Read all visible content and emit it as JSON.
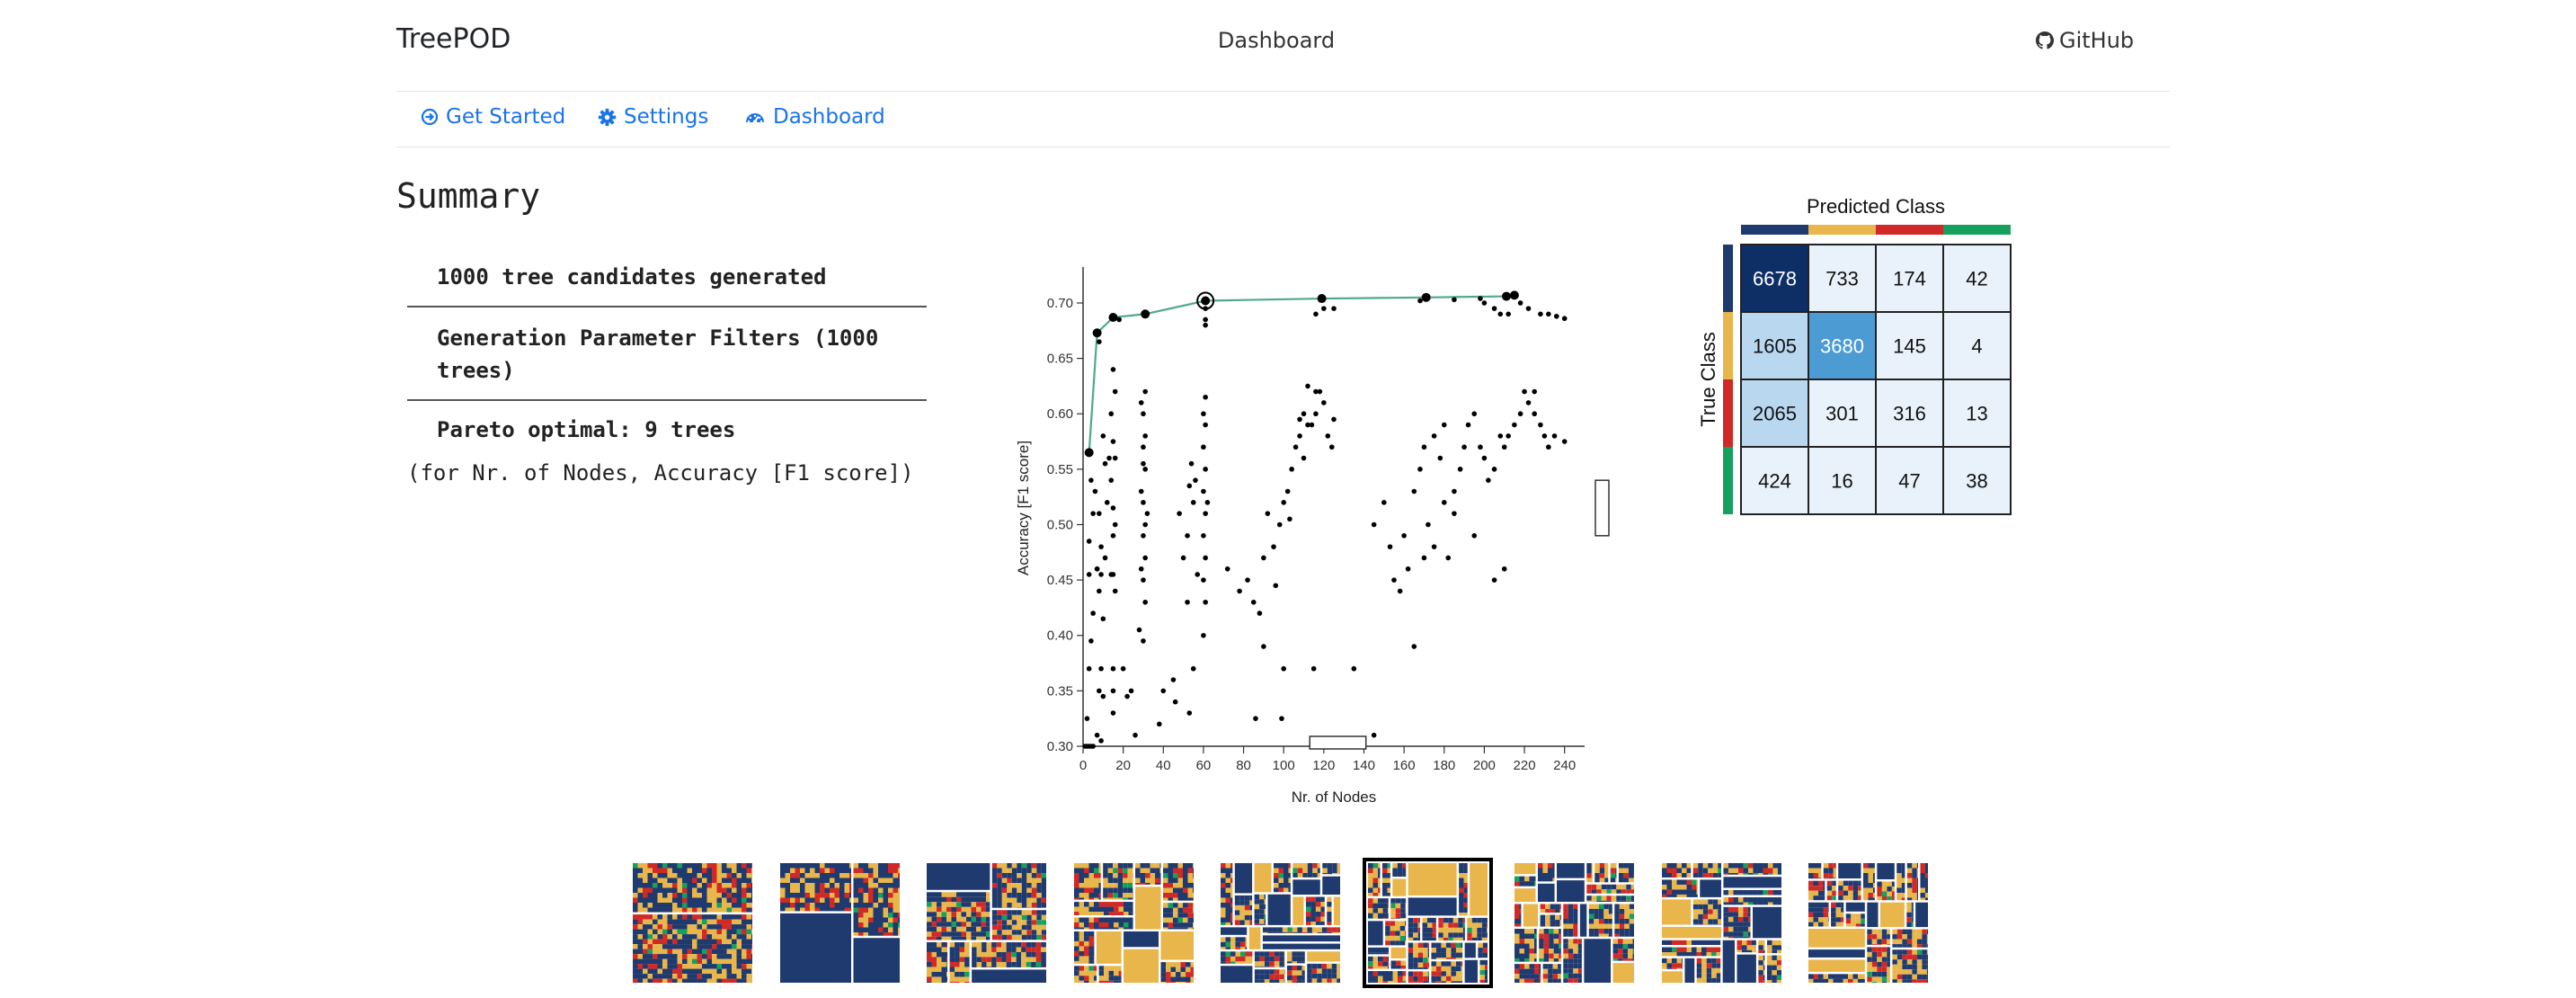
{
  "navbar": {
    "brand": "TreePOD",
    "center_title": "Dashboard",
    "github_label": "GitHub",
    "github_icon": "github-icon"
  },
  "nav": {
    "items": [
      {
        "label": "Get Started",
        "icon": "arrow-circle-icon"
      },
      {
        "label": "Settings",
        "icon": "gear-icon"
      },
      {
        "label": "Dashboard",
        "icon": "tachometer-icon"
      }
    ],
    "link_color": "#1a73e8"
  },
  "summary": {
    "heading": "Summary",
    "items": [
      "1000 tree candidates generated",
      "Generation Parameter Filters (1000 trees)",
      "Pareto optimal: 9 trees"
    ],
    "note": "(for Nr. of Nodes, Accuracy [F1 score])"
  },
  "colors": {
    "class1": "#1f3a6e",
    "class2": "#e8b64b",
    "class3": "#cf2a27",
    "class4": "#16a05d",
    "pareto_line": "#4fa98a"
  },
  "chart_data": [
    {
      "type": "scatter",
      "xlabel": "Nr. of Nodes",
      "ylabel": "Accuracy [F1 score]",
      "xlim": [
        0,
        250
      ],
      "ylim": [
        0.3,
        0.73
      ],
      "x_ticks": [
        "0",
        "20",
        "40",
        "60",
        "80",
        "100",
        "120",
        "140",
        "160",
        "180",
        "200",
        "220",
        "240"
      ],
      "y_ticks": [
        "0.30",
        "0.35",
        "0.40",
        "0.45",
        "0.50",
        "0.55",
        "0.60",
        "0.65",
        "0.70"
      ],
      "pareto_front": [
        {
          "x": 3,
          "y": 0.565
        },
        {
          "x": 7,
          "y": 0.673
        },
        {
          "x": 15,
          "y": 0.687
        },
        {
          "x": 31,
          "y": 0.69
        },
        {
          "x": 61,
          "y": 0.702
        },
        {
          "x": 119,
          "y": 0.704
        },
        {
          "x": 171,
          "y": 0.705
        },
        {
          "x": 211,
          "y": 0.706
        },
        {
          "x": 215,
          "y": 0.707
        }
      ],
      "selected_point": {
        "x": 61,
        "y": 0.702
      },
      "points": [
        [
          1,
          0.3
        ],
        [
          2,
          0.3
        ],
        [
          3,
          0.3
        ],
        [
          4,
          0.3
        ],
        [
          5,
          0.3
        ],
        [
          2,
          0.325
        ],
        [
          3,
          0.37
        ],
        [
          4,
          0.395
        ],
        [
          3,
          0.455
        ],
        [
          5,
          0.42
        ],
        [
          3,
          0.485
        ],
        [
          5,
          0.51
        ],
        [
          7,
          0.46
        ],
        [
          6,
          0.53
        ],
        [
          4,
          0.54
        ],
        [
          3,
          0.565
        ],
        [
          7,
          0.31
        ],
        [
          9,
          0.305
        ],
        [
          8,
          0.35
        ],
        [
          9,
          0.37
        ],
        [
          10,
          0.345
        ],
        [
          7,
          0.46
        ],
        [
          8,
          0.44
        ],
        [
          10,
          0.415
        ],
        [
          9,
          0.48
        ],
        [
          11,
          0.47
        ],
        [
          8,
          0.51
        ],
        [
          12,
          0.52
        ],
        [
          11,
          0.555
        ],
        [
          10,
          0.58
        ],
        [
          13,
          0.56
        ],
        [
          9,
          0.455
        ],
        [
          15,
          0.33
        ],
        [
          15,
          0.35
        ],
        [
          15,
          0.37
        ],
        [
          16,
          0.44
        ],
        [
          14,
          0.455
        ],
        [
          15,
          0.49
        ],
        [
          16,
          0.5
        ],
        [
          15,
          0.515
        ],
        [
          14,
          0.54
        ],
        [
          16,
          0.56
        ],
        [
          15,
          0.575
        ],
        [
          14,
          0.6
        ],
        [
          15,
          0.64
        ],
        [
          16,
          0.62
        ],
        [
          15,
          0.455
        ],
        [
          20,
          0.37
        ],
        [
          22,
          0.345
        ],
        [
          24,
          0.35
        ],
        [
          26,
          0.31
        ],
        [
          28,
          0.405
        ],
        [
          30,
          0.395
        ],
        [
          31,
          0.43
        ],
        [
          30,
          0.45
        ],
        [
          29,
          0.46
        ],
        [
          31,
          0.47
        ],
        [
          30,
          0.49
        ],
        [
          31,
          0.5
        ],
        [
          30,
          0.52
        ],
        [
          29,
          0.53
        ],
        [
          31,
          0.55
        ],
        [
          30,
          0.57
        ],
        [
          31,
          0.58
        ],
        [
          30,
          0.6
        ],
        [
          29,
          0.61
        ],
        [
          31,
          0.62
        ],
        [
          30,
          0.555
        ],
        [
          32,
          0.51
        ],
        [
          38,
          0.32
        ],
        [
          40,
          0.35
        ],
        [
          45,
          0.36
        ],
        [
          46,
          0.34
        ],
        [
          50,
          0.47
        ],
        [
          52,
          0.49
        ],
        [
          48,
          0.51
        ],
        [
          55,
          0.52
        ],
        [
          53,
          0.535
        ],
        [
          56,
          0.54
        ],
        [
          54,
          0.555
        ],
        [
          52,
          0.43
        ],
        [
          57,
          0.455
        ],
        [
          55,
          0.37
        ],
        [
          53,
          0.33
        ],
        [
          60,
          0.4
        ],
        [
          61,
          0.43
        ],
        [
          60,
          0.45
        ],
        [
          61,
          0.47
        ],
        [
          60,
          0.49
        ],
        [
          61,
          0.51
        ],
        [
          60,
          0.53
        ],
        [
          61,
          0.55
        ],
        [
          60,
          0.57
        ],
        [
          61,
          0.59
        ],
        [
          60,
          0.6
        ],
        [
          61,
          0.615
        ],
        [
          62,
          0.52
        ],
        [
          61,
          0.68
        ],
        [
          61,
          0.685
        ],
        [
          72,
          0.46
        ],
        [
          78,
          0.44
        ],
        [
          82,
          0.45
        ],
        [
          85,
          0.43
        ],
        [
          88,
          0.42
        ],
        [
          90,
          0.47
        ],
        [
          92,
          0.51
        ],
        [
          95,
          0.48
        ],
        [
          98,
          0.5
        ],
        [
          100,
          0.52
        ],
        [
          102,
          0.53
        ],
        [
          104,
          0.55
        ],
        [
          106,
          0.57
        ],
        [
          108,
          0.58
        ],
        [
          110,
          0.56
        ],
        [
          112,
          0.59
        ],
        [
          114,
          0.59
        ],
        [
          116,
          0.6
        ],
        [
          118,
          0.62
        ],
        [
          120,
          0.61
        ],
        [
          122,
          0.58
        ],
        [
          124,
          0.57
        ],
        [
          125,
          0.595
        ],
        [
          112,
          0.625
        ],
        [
          116,
          0.62
        ],
        [
          110,
          0.6
        ],
        [
          108,
          0.595
        ],
        [
          103,
          0.505
        ],
        [
          96,
          0.445
        ],
        [
          86,
          0.325
        ],
        [
          100,
          0.37
        ],
        [
          115,
          0.37
        ],
        [
          135,
          0.37
        ],
        [
          145,
          0.31
        ],
        [
          90,
          0.39
        ],
        [
          99,
          0.325
        ],
        [
          150,
          0.52
        ],
        [
          153,
          0.48
        ],
        [
          145,
          0.5
        ],
        [
          160,
          0.49
        ],
        [
          162,
          0.46
        ],
        [
          165,
          0.53
        ],
        [
          168,
          0.55
        ],
        [
          170,
          0.57
        ],
        [
          172,
          0.5
        ],
        [
          175,
          0.58
        ],
        [
          178,
          0.56
        ],
        [
          180,
          0.59
        ],
        [
          182,
          0.47
        ],
        [
          185,
          0.53
        ],
        [
          188,
          0.55
        ],
        [
          190,
          0.57
        ],
        [
          192,
          0.59
        ],
        [
          195,
          0.6
        ],
        [
          198,
          0.57
        ],
        [
          200,
          0.56
        ],
        [
          202,
          0.54
        ],
        [
          205,
          0.55
        ],
        [
          208,
          0.58
        ],
        [
          210,
          0.57
        ],
        [
          212,
          0.58
        ],
        [
          215,
          0.59
        ],
        [
          218,
          0.6
        ],
        [
          220,
          0.62
        ],
        [
          222,
          0.61
        ],
        [
          225,
          0.6
        ],
        [
          228,
          0.59
        ],
        [
          230,
          0.58
        ],
        [
          232,
          0.57
        ],
        [
          235,
          0.58
        ],
        [
          240,
          0.575
        ],
        [
          155,
          0.45
        ],
        [
          158,
          0.44
        ],
        [
          165,
          0.39
        ],
        [
          170,
          0.47
        ],
        [
          175,
          0.48
        ],
        [
          180,
          0.52
        ],
        [
          185,
          0.51
        ],
        [
          195,
          0.49
        ],
        [
          205,
          0.45
        ],
        [
          210,
          0.46
        ],
        [
          225,
          0.62
        ],
        [
          200,
          0.7
        ],
        [
          205,
          0.695
        ],
        [
          208,
          0.69
        ],
        [
          212,
          0.69
        ],
        [
          218,
          0.7
        ],
        [
          222,
          0.695
        ],
        [
          228,
          0.69
        ],
        [
          232,
          0.69
        ],
        [
          236,
          0.688
        ],
        [
          240,
          0.686
        ],
        [
          116,
          0.69
        ],
        [
          120,
          0.695
        ],
        [
          125,
          0.695
        ],
        [
          168,
          0.702
        ],
        [
          185,
          0.703
        ],
        [
          198,
          0.704
        ],
        [
          61,
          0.695
        ],
        [
          18,
          0.685
        ],
        [
          8,
          0.665
        ]
      ]
    },
    {
      "type": "heatmap",
      "title": "Predicted Class",
      "ylabel": "True Class",
      "values": [
        [
          6678,
          733,
          174,
          42
        ],
        [
          1605,
          3680,
          145,
          4
        ],
        [
          2065,
          301,
          316,
          13
        ],
        [
          424,
          16,
          47,
          38
        ]
      ]
    }
  ]
}
